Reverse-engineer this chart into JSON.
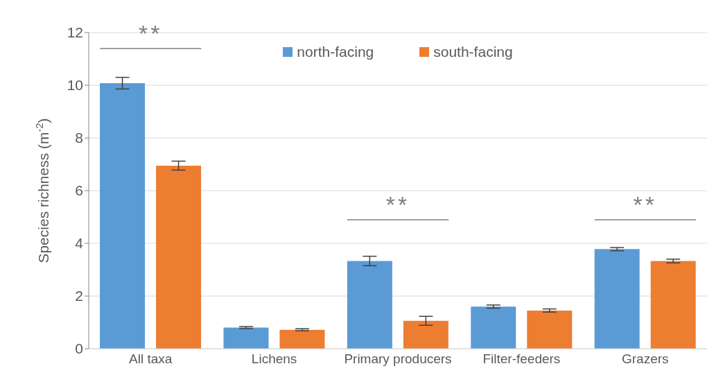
{
  "chart_data": {
    "type": "bar",
    "ylabel": "Species richness (m$^{-2}$)",
    "categories": [
      "All taxa",
      "Lichens",
      "Primary producers",
      "Filter-feeders",
      "Grazers"
    ],
    "series": [
      {
        "name": "north-facing",
        "color": "#5b9bd5",
        "values": [
          10.08,
          0.8,
          3.33,
          1.6,
          3.78
        ],
        "errors": [
          0.22,
          0.04,
          0.18,
          0.06,
          0.06
        ]
      },
      {
        "name": "south-facing",
        "color": "#ed7d31",
        "values": [
          6.95,
          0.72,
          1.06,
          1.45,
          3.33
        ],
        "errors": [
          0.17,
          0.04,
          0.17,
          0.06,
          0.07
        ]
      }
    ],
    "ylim": [
      0,
      12
    ],
    "yticks": [
      0,
      2,
      4,
      6,
      8,
      10,
      12
    ],
    "grid": "y",
    "legend": "top",
    "annotations": [
      "**",
      "**",
      "**"
    ]
  }
}
